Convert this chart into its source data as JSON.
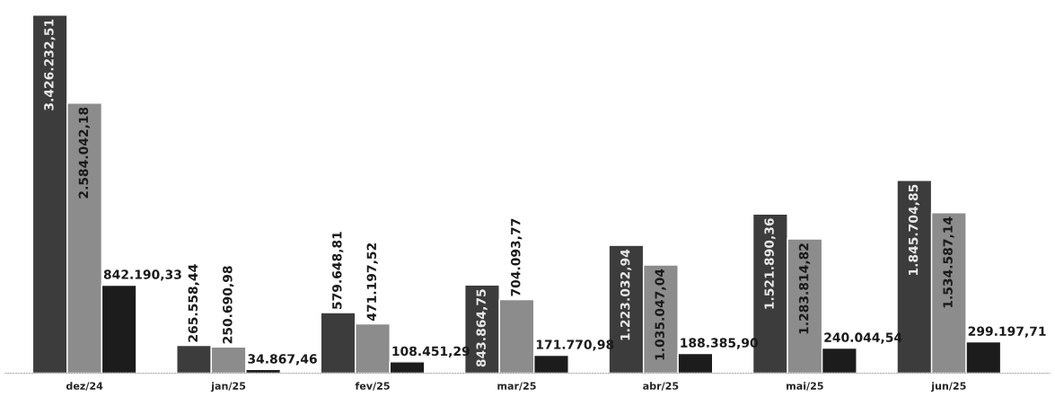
{
  "chart_data": {
    "type": "bar",
    "categories": [
      "dez/24",
      "jan/25",
      "fev/25",
      "mar/25",
      "abr/25",
      "mai/25",
      "jun/25"
    ],
    "series": [
      {
        "color": "#3c3c3c",
        "values": [
          3426232.51,
          265558.44,
          579648.81,
          843864.75,
          1223032.94,
          1521890.36,
          1845704.85
        ],
        "value_labels": [
          "3.426.232,51",
          "265.558,44",
          "579.648,81",
          "843.864,75",
          "1.223.032,94",
          "1.521.890,36",
          "1.845.704,85"
        ]
      },
      {
        "color": "#8c8c8c",
        "values": [
          2584042.18,
          250690.98,
          471197.52,
          704093.77,
          1035047.04,
          1283814.82,
          1534587.14
        ],
        "value_labels": [
          "2.584.042,18",
          "250.690,98",
          "471.197,52",
          "704.093,77",
          "1.035.047,04",
          "1.283.814,82",
          "1.534.587,14"
        ]
      },
      {
        "color": "#1c1c1c",
        "values": [
          842190.33,
          34867.46,
          108451.29,
          171770.98,
          188385.9,
          240044.54,
          299197.71
        ],
        "value_labels": [
          "842.190,33",
          "34.867,46",
          "108.451,29",
          "171.770,98",
          "188.385,90",
          "240.044,54",
          "299.197,71"
        ]
      }
    ],
    "grid": false,
    "legend": false
  }
}
